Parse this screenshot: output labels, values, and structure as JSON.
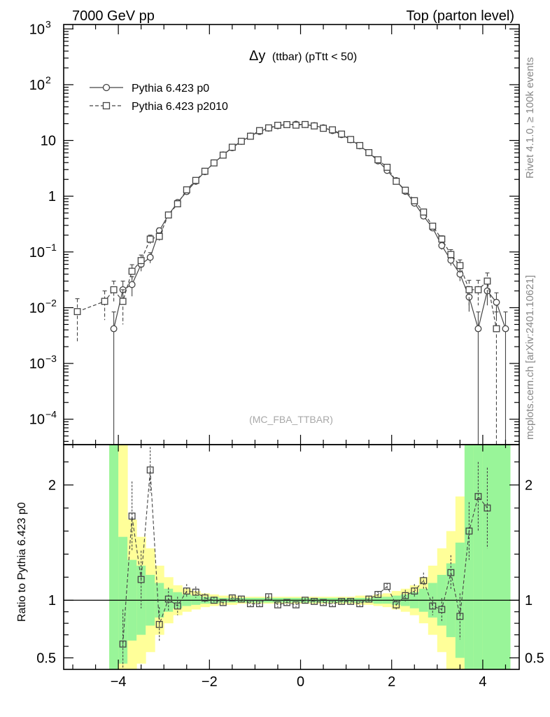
{
  "header": {
    "left": "7000 GeV pp",
    "right": "Top (parton level)"
  },
  "side": {
    "rivet": "Rivet 4.1.0, ≥ 100k events",
    "mcplots": "mcplots.cern.ch [arXiv:2401.10621]"
  },
  "chart_data": {
    "type": "line",
    "title": "Δy (ttbar) (pTtt < 50)",
    "title_main": "Δy",
    "title_rest": "(ttbar) (pTtt < 50)",
    "analysis": "(MC_FBA_TTBAR)",
    "xlabel": "",
    "ylabel": "",
    "ratio_ylabel": "Ratio to Pythia 6.423 p0",
    "xlim": [
      -5.2,
      4.8
    ],
    "ylim": [
      3.5e-05,
      1200
    ],
    "yscale": "log",
    "ratio_ylim": [
      0.4,
      2.35
    ],
    "x_ticks": [
      -4,
      -2,
      0,
      2,
      4
    ],
    "x_tick_labels": [
      "−4",
      "−2",
      "0",
      "2",
      "4"
    ],
    "y_ticks": [
      {
        "value": 0.0001,
        "base": "10",
        "exp": "−4"
      },
      {
        "value": 0.001,
        "base": "10",
        "exp": "−3"
      },
      {
        "value": 0.01,
        "base": "10",
        "exp": "−2"
      },
      {
        "value": 0.1,
        "base": "10",
        "exp": "−1"
      },
      {
        "value": 1,
        "base": "1",
        "exp": ""
      },
      {
        "value": 10,
        "base": "10",
        "exp": ""
      },
      {
        "value": 100,
        "base": "10",
        "exp": "2"
      },
      {
        "value": 1000,
        "base": "10",
        "exp": "3"
      }
    ],
    "ratio_ticks": [
      {
        "value": 0.5,
        "label": "0.5"
      },
      {
        "value": 1,
        "label": "1"
      },
      {
        "value": 2,
        "label": "2"
      }
    ],
    "series": [
      {
        "name": "Pythia 6.423 p0",
        "marker": "circle",
        "dash": "solid",
        "x": [
          -4.1,
          -3.9,
          -3.7,
          -3.5,
          -3.3,
          -3.1,
          -2.9,
          -2.7,
          -2.5,
          -2.3,
          -2.1,
          -1.9,
          -1.7,
          -1.5,
          -1.3,
          -1.1,
          -0.9,
          -0.7,
          -0.5,
          -0.3,
          -0.1,
          0.1,
          0.3,
          0.5,
          0.7,
          0.9,
          1.1,
          1.3,
          1.5,
          1.7,
          1.9,
          2.1,
          2.3,
          2.5,
          2.7,
          2.9,
          3.1,
          3.3,
          3.5,
          3.7,
          3.9,
          4.1,
          4.3,
          4.5
        ],
        "y": [
          0.0042,
          0.021,
          0.026,
          0.06,
          0.08,
          0.24,
          0.46,
          0.77,
          1.21,
          1.85,
          2.75,
          3.95,
          5.5,
          7.4,
          9.6,
          12.0,
          14.5,
          16.6,
          18.3,
          19.3,
          19.5,
          19.3,
          18.4,
          16.9,
          15.0,
          12.7,
          10.3,
          8.0,
          6.0,
          4.3,
          2.9,
          1.9,
          1.22,
          0.75,
          0.44,
          0.27,
          0.13,
          0.071,
          0.04,
          0.0155,
          0.0042,
          0.02,
          0.0125,
          0.0042
        ],
        "err": [
          0.0042,
          0.009,
          0.01,
          0.015,
          0.017,
          0.03,
          0.04,
          0.05,
          0.06,
          0.07,
          0.08,
          0.1,
          0.12,
          0.13,
          0.15,
          0.17,
          0.18,
          0.19,
          0.2,
          0.2,
          0.2,
          0.2,
          0.2,
          0.2,
          0.18,
          0.17,
          0.15,
          0.13,
          0.12,
          0.1,
          0.08,
          0.07,
          0.06,
          0.05,
          0.04,
          0.03,
          0.02,
          0.014,
          0.01,
          0.007,
          0.0042,
          0.009,
          0.006,
          0.0042
        ]
      },
      {
        "name": "Pythia 6.423 p2010",
        "marker": "square",
        "dash": "dashed",
        "x": [
          -4.9,
          -4.3,
          -4.1,
          -3.9,
          -3.7,
          -3.5,
          -3.3,
          -3.1,
          -2.9,
          -2.7,
          -2.5,
          -2.3,
          -2.1,
          -1.9,
          -1.7,
          -1.5,
          -1.3,
          -1.1,
          -0.9,
          -0.7,
          -0.5,
          -0.3,
          -0.1,
          0.1,
          0.3,
          0.5,
          0.7,
          0.9,
          1.1,
          1.3,
          1.5,
          1.7,
          1.9,
          2.1,
          2.3,
          2.5,
          2.7,
          2.9,
          3.1,
          3.3,
          3.5,
          3.7,
          3.9,
          4.1,
          4.3
        ],
        "y": [
          0.0085,
          0.013,
          0.021,
          0.013,
          0.045,
          0.07,
          0.17,
          0.19,
          0.46,
          0.73,
          1.3,
          1.92,
          2.8,
          3.95,
          5.45,
          7.55,
          9.65,
          11.9,
          15.0,
          16.8,
          18.7,
          19.2,
          18.8,
          19.3,
          18.2,
          16.5,
          15.5,
          13.0,
          10.4,
          8.1,
          6.05,
          4.5,
          3.3,
          1.85,
          1.28,
          0.83,
          0.52,
          0.29,
          0.17,
          0.09,
          0.057,
          0.021,
          0.021,
          0.03,
          0.0042
        ],
        "err": [
          0.006,
          0.007,
          0.009,
          0.008,
          0.014,
          0.018,
          0.03,
          0.03,
          0.05,
          0.06,
          0.08,
          0.09,
          0.1,
          0.12,
          0.14,
          0.16,
          0.18,
          0.19,
          0.21,
          0.22,
          0.23,
          0.23,
          0.23,
          0.23,
          0.23,
          0.22,
          0.22,
          0.2,
          0.18,
          0.17,
          0.15,
          0.13,
          0.11,
          0.09,
          0.07,
          0.06,
          0.05,
          0.035,
          0.025,
          0.02,
          0.015,
          0.01,
          0.01,
          0.012,
          0.0042
        ]
      }
    ],
    "ratio": {
      "x": [
        -3.9,
        -3.7,
        -3.5,
        -3.3,
        -3.1,
        -2.9,
        -2.7,
        -2.5,
        -2.3,
        -2.1,
        -1.9,
        -1.7,
        -1.5,
        -1.3,
        -1.1,
        -0.9,
        -0.7,
        -0.5,
        -0.3,
        -0.1,
        0.1,
        0.3,
        0.5,
        0.7,
        0.9,
        1.1,
        1.3,
        1.5,
        1.7,
        1.9,
        2.1,
        2.3,
        2.5,
        2.7,
        2.9,
        3.1,
        3.3,
        3.5,
        3.7,
        3.9,
        4.1
      ],
      "y": [
        0.62,
        1.73,
        1.18,
        2.13,
        0.79,
        1.01,
        0.95,
        1.08,
        1.07,
        1.02,
        1.0,
        0.98,
        1.02,
        1.01,
        0.97,
        0.97,
        1.03,
        0.96,
        0.98,
        0.96,
        1.0,
        0.99,
        0.98,
        0.97,
        0.99,
        0.99,
        0.97,
        1.01,
        1.05,
        1.12,
        0.96,
        1.04,
        1.08,
        1.17,
        0.95,
        0.92,
        1.24,
        0.86,
        1.6,
        1.9,
        1.8
      ],
      "err": [
        0.3,
        0.3,
        0.25,
        0.2,
        0.15,
        0.1,
        0.08,
        0.06,
        0.05,
        0.04,
        0.03,
        0.03,
        0.02,
        0.02,
        0.02,
        0.02,
        0.02,
        0.02,
        0.02,
        0.02,
        0.02,
        0.02,
        0.02,
        0.02,
        0.02,
        0.02,
        0.02,
        0.02,
        0.03,
        0.03,
        0.04,
        0.05,
        0.06,
        0.07,
        0.08,
        0.1,
        0.15,
        0.2,
        0.25,
        0.3,
        0.35
      ],
      "band_green": [
        2.35,
        1.55,
        1.35,
        1.3,
        1.22,
        1.15,
        1.1,
        1.07,
        1.05,
        1.04,
        1.03,
        1.03,
        1.02,
        1.02,
        1.02,
        1.02,
        1.02,
        1.02,
        1.02,
        1.02,
        1.02,
        1.02,
        1.02,
        1.02,
        1.02,
        1.02,
        1.02,
        1.02,
        1.02,
        1.03,
        1.03,
        1.04,
        1.05,
        1.07,
        1.1,
        1.15,
        1.22,
        1.32,
        1.5,
        2.35,
        2.35,
        2.35
      ],
      "band_yellow": [
        2.35,
        2.35,
        1.7,
        1.55,
        1.45,
        1.3,
        1.2,
        1.13,
        1.1,
        1.08,
        1.06,
        1.05,
        1.04,
        1.04,
        1.03,
        1.03,
        1.03,
        1.03,
        1.03,
        1.03,
        1.03,
        1.03,
        1.03,
        1.03,
        1.03,
        1.03,
        1.03,
        1.04,
        1.04,
        1.05,
        1.06,
        1.08,
        1.1,
        1.13,
        1.2,
        1.3,
        1.45,
        1.6,
        1.9,
        2.35,
        2.35,
        2.35
      ],
      "band_x": [
        -4.2,
        -4.0,
        -3.8,
        -3.6,
        -3.4,
        -3.2,
        -3.0,
        -2.8,
        -2.6,
        -2.4,
        -2.2,
        -2.0,
        -1.8,
        -1.6,
        -1.4,
        -1.2,
        -1.0,
        -0.8,
        -0.6,
        -0.4,
        -0.2,
        0.0,
        0.2,
        0.4,
        0.6,
        0.8,
        1.0,
        1.2,
        1.4,
        1.6,
        1.8,
        2.0,
        2.2,
        2.4,
        2.6,
        2.8,
        3.0,
        3.2,
        3.4,
        3.6,
        3.8,
        4.0,
        4.6
      ]
    }
  }
}
